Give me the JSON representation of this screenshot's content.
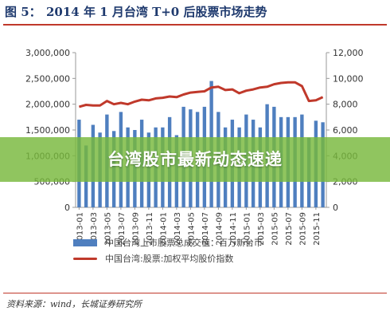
{
  "figure": {
    "label": "图 5：",
    "title": "2014 年 1 月台湾 T+0 后股票市场走势",
    "source": "资料来源：wind，长城证券研究所"
  },
  "overlay": {
    "text": "台湾股市最新动态速递",
    "color": "#7ab83c"
  },
  "legend": {
    "bar": "中国台湾上市股票总成交值：百万新台币",
    "line": "中国台湾:股票:加权平均股价指数"
  },
  "colors": {
    "bar": "#4f7fbf",
    "line": "#c0392b",
    "title": "#1f3a6e"
  },
  "chart_data": {
    "type": "bar+line",
    "x_tick_labels": [
      "2013-01",
      "2013-03",
      "2013-05",
      "2013-07",
      "2013-09",
      "2013-11",
      "2014-01",
      "2014-03",
      "2014-05",
      "2014-07",
      "2014-09",
      "2014-11",
      "2015-01",
      "2015-03",
      "2015-05",
      "2015-07",
      "2015-09",
      "2015-11"
    ],
    "left_axis": {
      "ticks": [
        "0",
        "500,000",
        "1,000,000",
        "1,500,000",
        "2,000,000",
        "2,500,000",
        "3,000,000"
      ],
      "ylim": [
        0,
        3000000
      ]
    },
    "right_axis": {
      "ticks": [
        "0",
        "2,000",
        "4,000",
        "6,000",
        "8,000",
        "10,000",
        "12,000"
      ],
      "ylim": [
        0,
        12000
      ]
    },
    "series": [
      {
        "name": "中国台湾上市股票总成交值：百万新台币",
        "kind": "bar",
        "axis": "left",
        "values": [
          1700000,
          1200000,
          1600000,
          1450000,
          1800000,
          1480000,
          1850000,
          1550000,
          1500000,
          1700000,
          1450000,
          1550000,
          1550000,
          1750000,
          1400000,
          1950000,
          1900000,
          1850000,
          1950000,
          2450000,
          1850000,
          1550000,
          1700000,
          1550000,
          1800000,
          1700000,
          1550000,
          2000000,
          1950000,
          1750000,
          1750000,
          1750000,
          1800000,
          1350000,
          1680000,
          1650000
        ]
      },
      {
        "name": "中国台湾:股票:加权平均股价指数",
        "kind": "line",
        "axis": "right",
        "values": [
          7800,
          7950,
          7900,
          7900,
          8250,
          8000,
          8100,
          8000,
          8200,
          8350,
          8300,
          8450,
          8500,
          8600,
          8550,
          8750,
          8900,
          8950,
          9000,
          9300,
          9350,
          9100,
          9150,
          8850,
          9050,
          9150,
          9300,
          9350,
          9550,
          9650,
          9700,
          9700,
          9400,
          8250,
          8300,
          8550
        ]
      }
    ],
    "grid": false,
    "legend_position": "bottom"
  }
}
